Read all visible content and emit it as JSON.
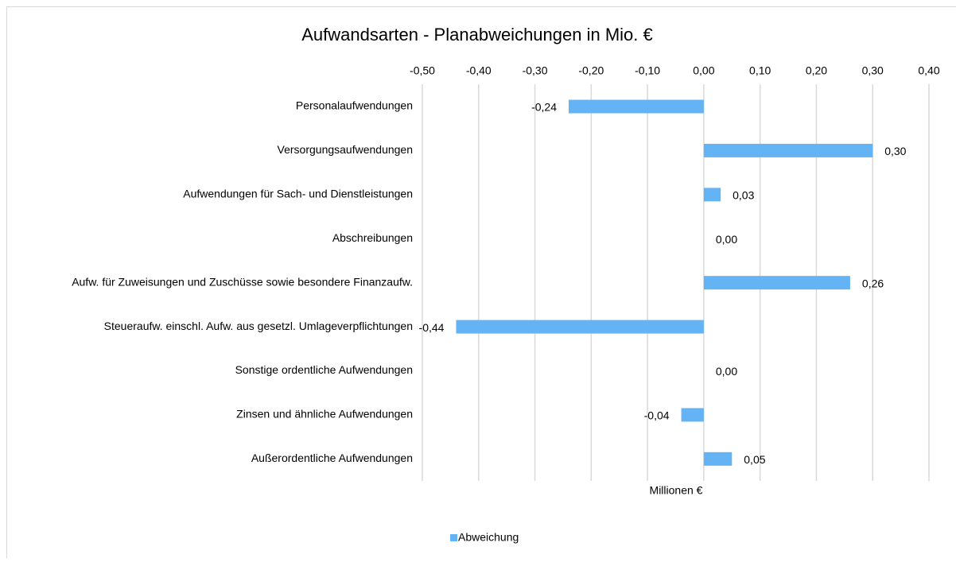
{
  "chart_data": {
    "type": "hbar",
    "title": "Aufwandsarten - Planabweichungen in Mio. €",
    "x_label": "Millionen €",
    "categories": [
      "Personalaufwendungen",
      "Versorgungsaufwendungen",
      "Aufwendungen für Sach- und Dienstleistungen",
      "Abschreibungen",
      "Aufw. für Zuweisungen und Zuschüsse sowie besondere Finanzaufw.",
      "Steueraufw. einschl. Aufw. aus gesetzl. Umlageverpflichtungen",
      "Sonstige ordentliche Aufwendungen",
      "Zinsen und ähnliche Aufwendungen",
      "Außerordentliche Aufwendungen"
    ],
    "series": [
      {
        "name": "Abweichung",
        "color": "#63b3f5",
        "values": [
          -0.24,
          0.3,
          0.03,
          0.0,
          0.26,
          -0.44,
          0.0,
          -0.04,
          0.05
        ],
        "value_labels": [
          "-0,24",
          "0,30",
          "0,03",
          "0,00",
          "0,26",
          "-0,44",
          "0,00",
          "-0,04",
          "0,05"
        ]
      }
    ],
    "xlim": [
      -0.5,
      0.4
    ],
    "xticks": [
      {
        "value": -0.5,
        "label": "-0,50"
      },
      {
        "value": -0.4,
        "label": "-0,40"
      },
      {
        "value": -0.3,
        "label": "-0,30"
      },
      {
        "value": -0.2,
        "label": "-0,20"
      },
      {
        "value": -0.1,
        "label": "-0,10"
      },
      {
        "value": 0,
        "label": "0,00"
      },
      {
        "value": 0.1,
        "label": "0,10"
      },
      {
        "value": 0.2,
        "label": "0,20"
      },
      {
        "value": 0.3,
        "label": "0,30"
      },
      {
        "value": 0.4,
        "label": "0,40"
      }
    ],
    "grid": true,
    "legend": "bottom"
  }
}
